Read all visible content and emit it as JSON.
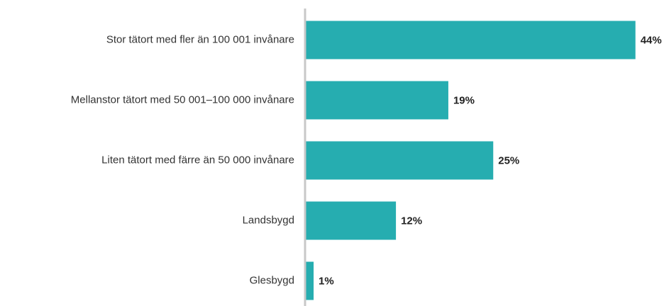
{
  "chart_data": {
    "type": "bar",
    "orientation": "horizontal",
    "categories": [
      "Stor tätort med fler än 100 001 invånare",
      "Mellanstor tätort med 50 001–100 000 invånare",
      "Liten tätort med färre än 50 000 invånare",
      "Landsbygd",
      "Glesbygd"
    ],
    "values": [
      44,
      19,
      25,
      12,
      1
    ],
    "value_labels": [
      "44%",
      "19%",
      "25%",
      "12%",
      "1%"
    ],
    "color": "#26adb0"
  }
}
